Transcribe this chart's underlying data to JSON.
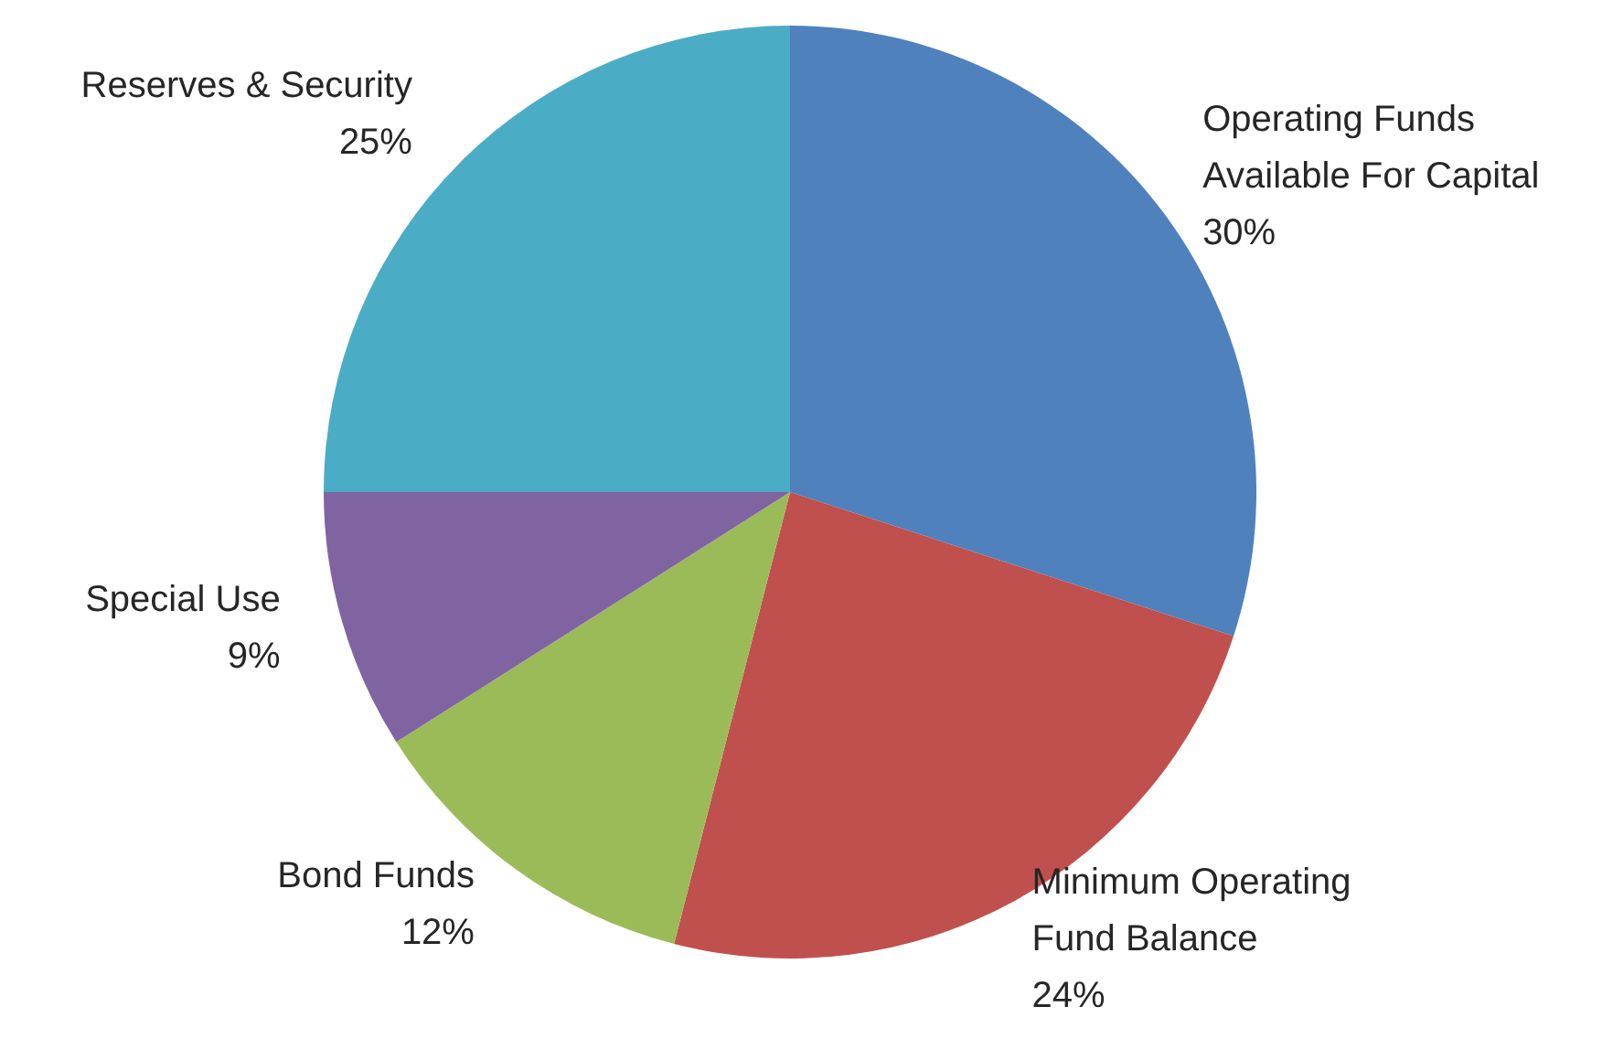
{
  "chart_data": {
    "type": "pie",
    "categories": [
      "Operating Funds Available For Capital",
      "Minimum Operating Fund Balance",
      "Bond Funds",
      "Special Use",
      "Reserves & Security"
    ],
    "values": [
      30,
      24,
      12,
      9,
      25
    ],
    "value_labels": [
      "30%",
      "24%",
      "12%",
      "9%",
      "25%"
    ],
    "colors": [
      "#4f81bd",
      "#c0504d",
      "#9bbb59",
      "#8064a2",
      "#4bacc6"
    ],
    "legend": false
  }
}
